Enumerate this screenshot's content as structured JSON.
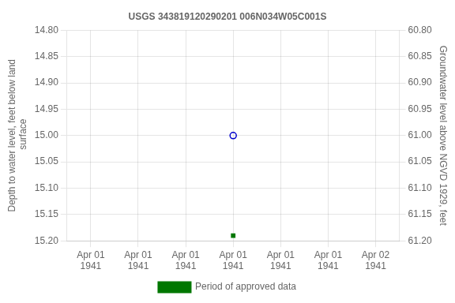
{
  "chart_data": {
    "type": "scatter",
    "title": "USGS 343819120290201 006N034W05C001S",
    "ylabel": "Depth to water level, feet below land\n surface",
    "y2label": "Groundwater level above NGVD 1929, feet",
    "categories": [
      "Apr 01\n1941",
      "Apr 01\n1941",
      "Apr 01\n1941",
      "Apr 01\n1941",
      "Apr 01\n1941",
      "Apr 01\n1941",
      "Apr 02\n1941"
    ],
    "series": [
      {
        "color": "#0000cc",
        "marker": "open_circle",
        "values": [
          null,
          null,
          null,
          15.0,
          null,
          null,
          null
        ]
      },
      {
        "name": "Period of approved data",
        "color": "#007700",
        "marker": "square",
        "values": [
          null,
          null,
          null,
          15.19,
          null,
          null,
          null
        ]
      }
    ],
    "ylim": [
      15.2,
      14.8
    ],
    "yticks": [
      {
        "value": 14.8,
        "label": "14.80"
      },
      14.85,
      {
        "value": 14.9,
        "label": "14.90"
      },
      14.95,
      {
        "value": 15.0,
        "label": "15.00"
      },
      15.05,
      {
        "value": 15.1,
        "label": "15.10"
      },
      15.15,
      {
        "value": 15.2,
        "label": "15.20"
      }
    ],
    "y2lim": [
      61.2,
      60.8
    ],
    "y2ticks": [
      {
        "value": 61.2,
        "label": "61.20"
      },
      61.15,
      {
        "value": 61.1,
        "label": "61.10"
      },
      61.05,
      {
        "value": 61.0,
        "label": "61.00"
      },
      60.95,
      {
        "value": 60.9,
        "label": "60.90"
      },
      60.85,
      {
        "value": 60.8,
        "label": "60.80"
      }
    ],
    "grid": true,
    "legend": "bottom"
  }
}
